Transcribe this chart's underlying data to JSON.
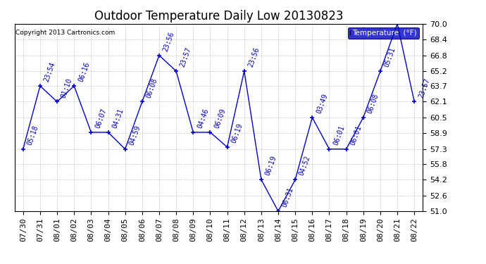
{
  "title": "Outdoor Temperature Daily Low 20130823",
  "copyright": "Copyright 2013 Cartronics.com",
  "legend_label": "Temperature  (°F)",
  "dates": [
    "07/30",
    "07/31",
    "08/01",
    "08/02",
    "08/03",
    "08/04",
    "08/05",
    "08/06",
    "08/07",
    "08/08",
    "08/09",
    "08/10",
    "08/11",
    "08/12",
    "08/13",
    "08/14",
    "08/15",
    "08/16",
    "08/17",
    "08/18",
    "08/19",
    "08/20",
    "08/21",
    "08/22"
  ],
  "values": [
    57.3,
    63.7,
    62.1,
    63.7,
    59.0,
    59.0,
    57.3,
    62.1,
    66.8,
    65.2,
    59.0,
    59.0,
    57.5,
    65.2,
    54.2,
    51.0,
    54.2,
    60.5,
    57.3,
    57.3,
    60.5,
    65.2,
    70.0,
    62.1
  ],
  "point_labels": [
    "05:18",
    "23:54",
    "01:10",
    "06:16",
    "06:07",
    "04:31",
    "04:59",
    "06:08",
    "23:56",
    "23:57",
    "04:46",
    "06:09",
    "06:19",
    "23:56",
    "06:19",
    "06:31",
    "04:52",
    "03:49",
    "06:01",
    "06:01",
    "06:08",
    "05:31",
    "",
    "23:57"
  ],
  "ylim": [
    51.0,
    70.0
  ],
  "yticks": [
    51.0,
    52.6,
    54.2,
    55.8,
    57.3,
    58.9,
    60.5,
    62.1,
    63.7,
    65.2,
    66.8,
    68.4,
    70.0
  ],
  "line_color": "#0000cc",
  "marker_color": "#0000cc",
  "label_color": "#0000bb",
  "bg_color": "#ffffff",
  "grid_color": "#bbbbbb",
  "title_fontsize": 12,
  "label_fontsize": 7,
  "tick_fontsize": 8,
  "legend_bg": "#0000cc",
  "legend_text_color": "#ffffff"
}
